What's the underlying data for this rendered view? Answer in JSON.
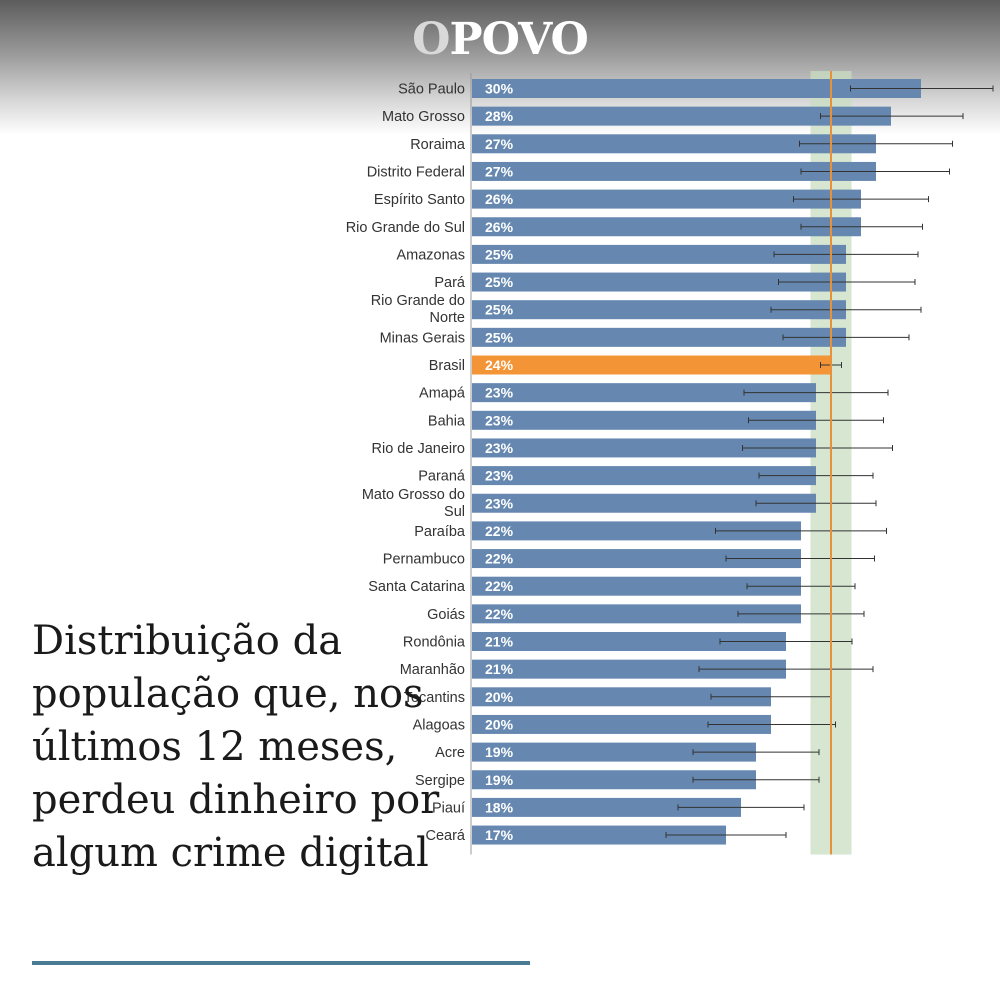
{
  "brand": {
    "logo_first": "O",
    "logo_rest": "POVO"
  },
  "headline": "Distribuição da população que, nos últimos 12 meses, perdeu dinheiro por algum crime digital",
  "colors": {
    "bar": "#6688b0",
    "highlight": "#f39436",
    "band": "#c8dec2",
    "refline": "#e8913b",
    "accent_rule": "#4a7b93"
  },
  "chart_data": {
    "type": "bar",
    "orientation": "horizontal",
    "title": "Distribuição da população que, nos últimos 12 meses, perdeu dinheiro por algum crime digital",
    "xlabel": "",
    "ylabel": "",
    "unit": "%",
    "xlim": [
      0,
      36
    ],
    "reference": {
      "category": "Brasil",
      "value": 24,
      "ci": [
        23.3,
        24.7
      ]
    },
    "categories": [
      "São Paulo",
      "Mato Grosso",
      "Roraima",
      "Distrito Federal",
      "Espírito Santo",
      "Rio Grande do Sul",
      "Amazonas",
      "Pará",
      "Rio Grande do Norte",
      "Minas Gerais",
      "Brasil",
      "Amapá",
      "Bahia",
      "Rio de Janeiro",
      "Paraná",
      "Mato Grosso do Sul",
      "Paraíba",
      "Pernambuco",
      "Santa Catarina",
      "Goiás",
      "Rondônia",
      "Maranhão",
      "Tocantins",
      "Alagoas",
      "Acre",
      "Sergipe",
      "Piauí",
      "Ceará"
    ],
    "values": [
      30,
      28,
      27,
      27,
      26,
      26,
      25,
      25,
      25,
      25,
      24,
      23,
      23,
      23,
      23,
      23,
      22,
      22,
      22,
      22,
      21,
      21,
      20,
      20,
      19,
      19,
      18,
      17
    ],
    "labels": [
      "30%",
      "28%",
      "27%",
      "27%",
      "26%",
      "26%",
      "25%",
      "25%",
      "25%",
      "25%",
      "24%",
      "23%",
      "23%",
      "23%",
      "23%",
      "23%",
      "22%",
      "22%",
      "22%",
      "22%",
      "21%",
      "21%",
      "20%",
      "20%",
      "19%",
      "19%",
      "18%",
      "17%"
    ],
    "ci_low": [
      25.3,
      23.3,
      21.9,
      22.0,
      21.5,
      22.0,
      20.2,
      20.5,
      20.0,
      20.8,
      23.3,
      18.2,
      18.5,
      18.1,
      19.2,
      19.0,
      16.3,
      17.0,
      18.4,
      17.8,
      16.6,
      15.2,
      16.0,
      15.8,
      14.8,
      14.8,
      13.8,
      13.0
    ],
    "ci_high": [
      34.8,
      32.8,
      32.1,
      31.9,
      30.5,
      30.1,
      29.8,
      29.6,
      30.0,
      29.2,
      24.7,
      27.8,
      27.5,
      28.1,
      26.8,
      27.0,
      27.7,
      26.9,
      25.6,
      26.2,
      25.4,
      26.8,
      24.0,
      24.3,
      23.2,
      23.2,
      22.2,
      21.0
    ],
    "grid": false,
    "legend": "none"
  }
}
